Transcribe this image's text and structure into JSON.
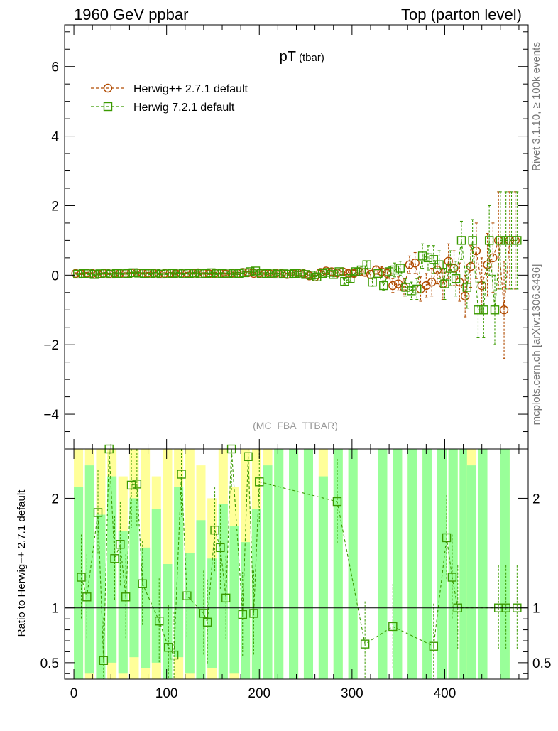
{
  "header": {
    "left": "1960 GeV ppbar",
    "right": "Top (parton level)"
  },
  "side": {
    "rivet": "Rivet 3.1.10, ≥ 100k events",
    "mcplots": "mcplots.cern.ch [arXiv:1306.3436]"
  },
  "colors": {
    "s1": "#b04a00",
    "s2": "#3a9a00",
    "band_outer": "#ffff99",
    "band_inner": "#99ff99"
  },
  "chart_data": [
    {
      "type": "scatter",
      "title": "pT",
      "title_sub": "(tbar)",
      "watermark": "(MC_FBA_TTBAR)",
      "xlim": [
        -10,
        490
      ],
      "ylim": [
        -5,
        7.2
      ],
      "yticks": [
        -4,
        -2,
        0,
        2,
        4,
        6
      ],
      "ytick_labels": [
        "−4",
        "−2",
        "0",
        "2",
        "4",
        "6"
      ],
      "series": [
        {
          "name": "Herwig++ 2.7.1 default",
          "marker": "circle",
          "x": [
            2,
            8,
            14,
            20,
            26,
            32,
            38,
            44,
            50,
            56,
            62,
            68,
            74,
            80,
            86,
            92,
            98,
            104,
            110,
            116,
            122,
            128,
            134,
            140,
            146,
            152,
            158,
            164,
            170,
            176,
            182,
            188,
            194,
            200,
            206,
            212,
            218,
            224,
            230,
            236,
            242,
            248,
            254,
            260,
            266,
            272,
            278,
            284,
            290,
            296,
            302,
            308,
            314,
            320,
            326,
            332,
            338,
            344,
            350,
            356,
            362,
            368,
            374,
            380,
            386,
            392,
            398,
            404,
            410,
            416,
            422,
            428,
            434,
            440,
            446,
            452,
            458,
            464,
            470,
            476
          ],
          "y": [
            0.05,
            0.04,
            0.06,
            0.05,
            0.03,
            0.05,
            0.04,
            0.06,
            0.05,
            0.05,
            0.06,
            0.07,
            0.05,
            0.06,
            0.05,
            0.04,
            0.05,
            0.06,
            0.04,
            0.05,
            0.06,
            0.05,
            0.07,
            0.05,
            0.04,
            0.06,
            0.05,
            0.03,
            0.06,
            0.05,
            0.08,
            0.07,
            0.05,
            0.06,
            0.04,
            0.03,
            0.06,
            0.05,
            0.02,
            0.03,
            0.05,
            0.04,
            -0.02,
            -0.05,
            0.08,
            0.12,
            0.1,
            0.06,
            0.1,
            0.05,
            0.05,
            0.1,
            0.08,
            0.02,
            0.15,
            0.1,
            0.05,
            -0.3,
            -0.25,
            -0.35,
            0.3,
            0.35,
            -0.4,
            -0.3,
            -0.2,
            0.15,
            -0.25,
            0.4,
            0.2,
            -0.2,
            -0.6,
            0.25,
            0.7,
            -0.3,
            0.3,
            0.5,
            1.0,
            -1.0,
            1.0,
            1.0
          ],
          "yerr": [
            0.02,
            0.02,
            0.02,
            0.02,
            0.02,
            0.02,
            0.02,
            0.02,
            0.02,
            0.02,
            0.02,
            0.02,
            0.02,
            0.02,
            0.02,
            0.02,
            0.02,
            0.02,
            0.02,
            0.02,
            0.02,
            0.02,
            0.02,
            0.02,
            0.02,
            0.02,
            0.02,
            0.03,
            0.03,
            0.03,
            0.03,
            0.03,
            0.03,
            0.03,
            0.03,
            0.03,
            0.03,
            0.04,
            0.04,
            0.04,
            0.05,
            0.05,
            0.05,
            0.05,
            0.06,
            0.06,
            0.07,
            0.07,
            0.08,
            0.08,
            0.09,
            0.1,
            0.1,
            0.12,
            0.12,
            0.14,
            0.15,
            0.2,
            0.2,
            0.25,
            0.25,
            0.3,
            0.35,
            0.35,
            0.4,
            0.4,
            0.45,
            0.5,
            0.5,
            0.55,
            0.6,
            0.6,
            0.8,
            0.8,
            0.9,
            1.0,
            1.4,
            1.4,
            1.4,
            1.4
          ]
        },
        {
          "name": "Herwig 7.2.1 default",
          "marker": "square",
          "x": [
            4,
            10,
            16,
            22,
            28,
            34,
            40,
            46,
            52,
            58,
            64,
            70,
            76,
            82,
            88,
            94,
            100,
            106,
            112,
            118,
            124,
            130,
            136,
            142,
            148,
            154,
            160,
            166,
            172,
            178,
            184,
            190,
            196,
            202,
            208,
            214,
            220,
            226,
            232,
            238,
            244,
            250,
            256,
            262,
            268,
            274,
            280,
            286,
            292,
            298,
            304,
            310,
            316,
            322,
            328,
            334,
            340,
            346,
            352,
            358,
            364,
            370,
            376,
            382,
            388,
            394,
            400,
            406,
            412,
            418,
            424,
            430,
            436,
            442,
            448,
            454,
            460,
            466,
            472,
            478
          ],
          "y": [
            0.03,
            0.05,
            0.04,
            0.02,
            0.04,
            0.06,
            0.03,
            0.05,
            0.04,
            0.05,
            0.07,
            0.06,
            0.05,
            0.04,
            0.06,
            0.03,
            0.04,
            0.05,
            0.06,
            0.04,
            0.05,
            0.06,
            0.04,
            0.05,
            0.07,
            0.04,
            0.05,
            0.06,
            0.04,
            0.05,
            0.07,
            0.1,
            0.12,
            0.04,
            0.05,
            0.06,
            0.03,
            0.04,
            0.03,
            0.05,
            0.06,
            0.02,
            0.0,
            -0.05,
            0.05,
            0.08,
            0.02,
            0.1,
            -0.18,
            -0.1,
            0.1,
            0.15,
            0.3,
            -0.2,
            0.05,
            -0.3,
            0.1,
            0.15,
            0.2,
            -0.35,
            -0.45,
            -0.4,
            0.55,
            0.5,
            0.45,
            0.3,
            -0.25,
            0.2,
            -0.1,
            1.0,
            -0.35,
            1.0,
            -1.0,
            -1.0,
            1.0,
            -1.0,
            1.0,
            1.0,
            1.0,
            1.0
          ],
          "yerr": [
            0.02,
            0.02,
            0.02,
            0.02,
            0.02,
            0.02,
            0.02,
            0.02,
            0.02,
            0.02,
            0.02,
            0.02,
            0.02,
            0.02,
            0.02,
            0.02,
            0.02,
            0.02,
            0.02,
            0.02,
            0.02,
            0.02,
            0.02,
            0.02,
            0.02,
            0.02,
            0.02,
            0.03,
            0.03,
            0.03,
            0.03,
            0.03,
            0.03,
            0.03,
            0.03,
            0.03,
            0.03,
            0.04,
            0.04,
            0.04,
            0.05,
            0.05,
            0.05,
            0.05,
            0.06,
            0.06,
            0.07,
            0.07,
            0.08,
            0.08,
            0.09,
            0.1,
            0.1,
            0.12,
            0.12,
            0.14,
            0.15,
            0.2,
            0.2,
            0.25,
            0.25,
            0.3,
            0.35,
            0.35,
            0.4,
            0.4,
            0.45,
            0.5,
            0.5,
            0.55,
            0.6,
            0.6,
            0.8,
            0.8,
            1.0,
            1.0,
            1.4,
            1.4,
            1.4,
            1.4
          ]
        }
      ]
    },
    {
      "type": "scatter",
      "ylabel": "Ratio to Herwig++ 2.7.1 default",
      "xlim": [
        -10,
        490
      ],
      "ylim": [
        0.35,
        2.45
      ],
      "yticks": [
        0.5,
        1,
        2
      ],
      "ytick_labels": [
        "0.5",
        "1",
        "2"
      ],
      "xticks": [
        0,
        100,
        200,
        300,
        400
      ],
      "xtick_labels": [
        "0",
        "100",
        "200",
        "300",
        "400"
      ],
      "reference_line": 1,
      "bands": [
        {
          "x": 0,
          "inner": [
            0.35,
            2.1
          ],
          "outer": [
            0.35,
            2.45
          ]
        },
        {
          "x": 12,
          "inner": [
            0.4,
            2.3
          ],
          "outer": [
            0.35,
            2.45
          ]
        },
        {
          "x": 24,
          "inner": [
            0.35,
            1.85
          ],
          "outer": [
            0.35,
            2.45
          ]
        },
        {
          "x": 36,
          "inner": [
            0.5,
            2.2
          ],
          "outer": [
            0.35,
            2.45
          ]
        },
        {
          "x": 48,
          "inner": [
            0.4,
            1.7
          ],
          "outer": [
            0.35,
            2.2
          ]
        },
        {
          "x": 60,
          "inner": [
            0.55,
            2.0
          ],
          "outer": [
            0.35,
            2.45
          ]
        },
        {
          "x": 72,
          "inner": [
            0.45,
            1.55
          ],
          "outer": [
            0.35,
            2.45
          ]
        },
        {
          "x": 84,
          "inner": [
            0.5,
            1.9
          ],
          "outer": [
            0.35,
            2.2
          ]
        },
        {
          "x": 96,
          "inner": [
            0.35,
            1.4
          ],
          "outer": [
            0.35,
            2.45
          ]
        },
        {
          "x": 108,
          "inner": [
            0.55,
            2.1
          ],
          "outer": [
            0.35,
            2.45
          ]
        },
        {
          "x": 120,
          "inner": [
            0.4,
            1.5
          ],
          "outer": [
            0.35,
            2.45
          ]
        },
        {
          "x": 132,
          "inner": [
            0.35,
            1.8
          ],
          "outer": [
            0.35,
            2.3
          ]
        },
        {
          "x": 144,
          "inner": [
            0.45,
            1.45
          ],
          "outer": [
            0.35,
            2.0
          ]
        },
        {
          "x": 156,
          "inner": [
            0.35,
            1.95
          ],
          "outer": [
            0.35,
            2.45
          ]
        },
        {
          "x": 168,
          "inner": [
            0.4,
            1.75
          ],
          "outer": [
            0.35,
            2.1
          ]
        },
        {
          "x": 180,
          "inner": [
            0.35,
            1.6
          ],
          "outer": [
            0.35,
            2.45
          ]
        },
        {
          "x": 192,
          "inner": [
            0.35,
            1.9
          ],
          "outer": [
            0.35,
            2.45
          ]
        },
        {
          "x": 204,
          "inner": [
            0.35,
            2.3
          ],
          "outer": [
            0.35,
            2.45
          ]
        },
        {
          "x": 216,
          "inner": [
            0.35,
            2.45
          ],
          "outer": [
            0.35,
            2.45
          ]
        },
        {
          "x": 232,
          "inner": [
            0.35,
            2.45
          ],
          "outer": [
            0.35,
            2.45
          ]
        },
        {
          "x": 248,
          "inner": [
            0.35,
            2.45
          ],
          "outer": [
            0.35,
            2.45
          ]
        },
        {
          "x": 264,
          "inner": [
            0.35,
            2.2
          ],
          "outer": [
            0.35,
            2.45
          ]
        },
        {
          "x": 280,
          "inner": [
            0.35,
            2.45
          ],
          "outer": [
            0.35,
            2.45
          ]
        },
        {
          "x": 296,
          "inner": [
            0.35,
            2.45
          ],
          "outer": [
            0.35,
            2.45
          ]
        },
        {
          "x": 328,
          "inner": [
            0.35,
            2.45
          ],
          "outer": [
            0.35,
            2.45
          ]
        },
        {
          "x": 344,
          "inner": [
            0.35,
            2.45
          ],
          "outer": [
            0.35,
            2.45
          ]
        },
        {
          "x": 360,
          "inner": [
            0.35,
            2.45
          ],
          "outer": [
            0.35,
            2.45
          ]
        },
        {
          "x": 376,
          "inner": [
            0.35,
            2.45
          ],
          "outer": [
            0.35,
            2.45
          ]
        },
        {
          "x": 392,
          "inner": [
            0.35,
            2.45
          ],
          "outer": [
            0.35,
            2.45
          ]
        },
        {
          "x": 404,
          "inner": [
            0.35,
            2.45
          ],
          "outer": [
            0.35,
            2.45
          ]
        },
        {
          "x": 416,
          "inner": [
            0.35,
            2.45
          ],
          "outer": [
            0.35,
            2.45
          ]
        },
        {
          "x": 424,
          "inner": [
            0.35,
            2.3
          ],
          "outer": [
            0.35,
            2.45
          ]
        },
        {
          "x": 436,
          "inner": [
            0.35,
            2.45
          ],
          "outer": [
            0.35,
            2.45
          ]
        },
        {
          "x": 460,
          "inner": [
            0.35,
            2.45
          ],
          "outer": [
            0.35,
            2.45
          ]
        }
      ],
      "bands_width": 10,
      "points": {
        "x": [
          8,
          14,
          26,
          32,
          38,
          44,
          50,
          56,
          62,
          68,
          74,
          92,
          102,
          108,
          116,
          122,
          140,
          144,
          152,
          158,
          164,
          170,
          182,
          188,
          194,
          200,
          284,
          314,
          344,
          388,
          402,
          408,
          414,
          458,
          466,
          478
        ],
        "y": [
          1.28,
          1.1,
          1.87,
          0.52,
          2.45,
          1.45,
          1.58,
          1.1,
          2.12,
          2.13,
          1.22,
          0.88,
          0.64,
          0.57,
          2.22,
          1.11,
          0.95,
          0.87,
          1.71,
          1.55,
          1.09,
          2.45,
          0.94,
          2.38,
          0.95,
          2.15,
          1.97,
          0.67,
          0.83,
          0.65,
          1.64,
          1.28,
          1.0,
          1.0,
          1.0,
          1.0
        ]
      }
    }
  ]
}
